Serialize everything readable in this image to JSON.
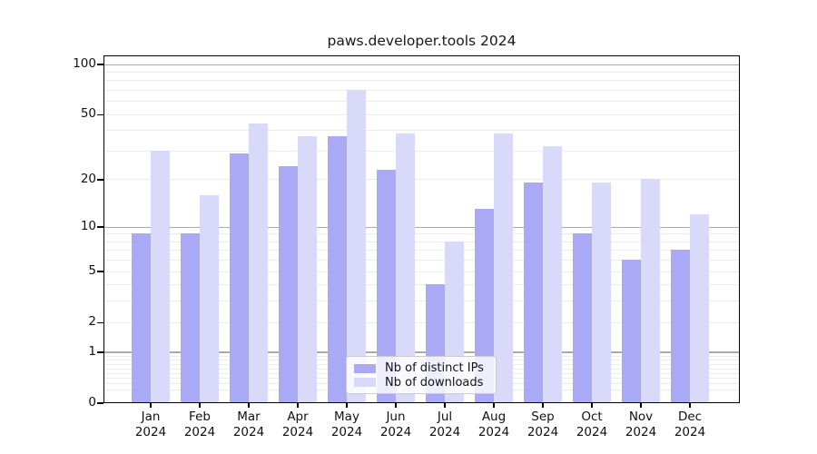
{
  "chart_data": {
    "type": "bar",
    "title": "paws.developer.tools 2024",
    "categories": [
      "Jan",
      "Feb",
      "Mar",
      "Apr",
      "May",
      "Jun",
      "Jul",
      "Aug",
      "Sep",
      "Oct",
      "Nov",
      "Dec"
    ],
    "year_label": "2024",
    "series": [
      {
        "name": "Nb of distinct IPs",
        "color": "#a9a9f5",
        "values": [
          9,
          9,
          29,
          24,
          37,
          23,
          4,
          13,
          19,
          9,
          6,
          7
        ]
      },
      {
        "name": "Nb of downloads",
        "color": "#d9d9fa",
        "values": [
          30,
          16,
          44,
          37,
          70,
          38,
          8,
          38,
          32,
          19,
          20,
          12
        ]
      }
    ],
    "yscale": "log1p",
    "yticks": [
      0,
      1,
      2,
      5,
      10,
      20,
      50,
      100
    ],
    "major_gridlines": [
      1,
      10,
      100
    ],
    "ylim": [
      0,
      115
    ],
    "grid": true,
    "legend_position": "lower center"
  }
}
